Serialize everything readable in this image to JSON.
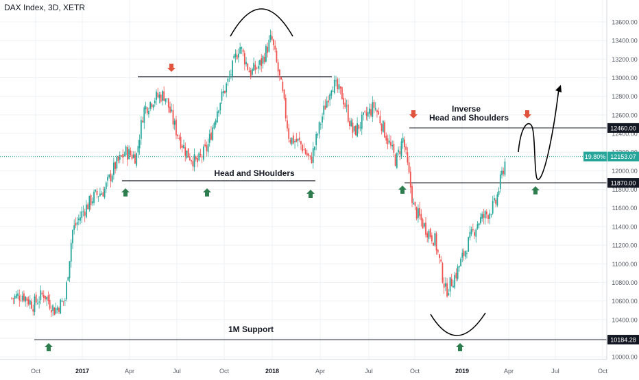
{
  "header": {
    "title": "DAX Index, 3D, XETR"
  },
  "colors": {
    "up": "#26a69a",
    "down": "#ef5350",
    "grid": "#eef0f3",
    "axis": "#d1d4dc",
    "axis_text": "#555a66",
    "line": "#131722",
    "arrow_up": "#2e7d4f",
    "arrow_down": "#e0533d",
    "current": "#26a69a"
  },
  "chart_data": {
    "type": "candlestick",
    "x_ticks": [
      "Oct",
      "2017",
      "Apr",
      "Jul",
      "Oct",
      "2018",
      "Apr",
      "Jul",
      "Oct",
      "2019",
      "Apr",
      "Jul",
      "Oct"
    ],
    "x_ticks_bold": [
      "2017",
      "2018",
      "2019"
    ],
    "y_ticks": [
      "10000.00",
      "10200.00",
      "10400.00",
      "10600.00",
      "10800.00",
      "11000.00",
      "11200.00",
      "11400.00",
      "11600.00",
      "11800.00",
      "12000.00",
      "12200.00",
      "12400.00",
      "12600.00",
      "12800.00",
      "13000.00",
      "13200.00",
      "13400.00",
      "13600.00"
    ],
    "ylim": [
      9900,
      13800
    ],
    "levels": [
      {
        "label": "12460.00",
        "value": 12460
      },
      {
        "label": "11870.00",
        "value": 11870
      },
      {
        "label": "10184.28",
        "value": 10184.28
      }
    ],
    "current": {
      "value": 12153.07,
      "label": "12153.07",
      "percent": "19.80%"
    },
    "annotations": [
      {
        "id": "hs",
        "text": "Head and SHoulders"
      },
      {
        "id": "inverse",
        "lines": [
          "Inverse",
          "Head and Shoulders"
        ]
      },
      {
        "id": "support",
        "text": "1M Support"
      }
    ],
    "series": [
      {
        "x": "2016-08-15",
        "close": 10630
      },
      {
        "x": "2016-09-05",
        "close": 10670
      },
      {
        "x": "2016-09-26",
        "close": 10560
      },
      {
        "x": "2016-10-17",
        "close": 10680
      },
      {
        "x": "2016-11-07",
        "close": 10500
      },
      {
        "x": "2016-11-28",
        "close": 10620
      },
      {
        "x": "2016-12-12",
        "close": 11350
      },
      {
        "x": "2017-01-02",
        "close": 11560
      },
      {
        "x": "2017-01-23",
        "close": 11720
      },
      {
        "x": "2017-02-13",
        "close": 11790
      },
      {
        "x": "2017-03-06",
        "close": 12050
      },
      {
        "x": "2017-03-27",
        "close": 12200
      },
      {
        "x": "2017-04-17",
        "close": 12150
      },
      {
        "x": "2017-05-01",
        "close": 12650
      },
      {
        "x": "2017-05-22",
        "close": 12780
      },
      {
        "x": "2017-06-12",
        "close": 12820
      },
      {
        "x": "2017-07-03",
        "close": 12450
      },
      {
        "x": "2017-07-24",
        "close": 12200
      },
      {
        "x": "2017-08-14",
        "close": 12080
      },
      {
        "x": "2017-09-04",
        "close": 12250
      },
      {
        "x": "2017-09-25",
        "close": 12700
      },
      {
        "x": "2017-10-16",
        "close": 12980
      },
      {
        "x": "2017-11-06",
        "close": 13350
      },
      {
        "x": "2017-11-27",
        "close": 13050
      },
      {
        "x": "2017-12-18",
        "close": 13150
      },
      {
        "x": "2018-01-08",
        "close": 13430
      },
      {
        "x": "2018-01-29",
        "close": 12850
      },
      {
        "x": "2018-02-12",
        "close": 12350
      },
      {
        "x": "2018-03-05",
        "close": 12300
      },
      {
        "x": "2018-03-26",
        "close": 12100
      },
      {
        "x": "2018-04-16",
        "close": 12550
      },
      {
        "x": "2018-05-07",
        "close": 12950
      },
      {
        "x": "2018-05-28",
        "close": 12800
      },
      {
        "x": "2018-06-18",
        "close": 12400
      },
      {
        "x": "2018-07-09",
        "close": 12560
      },
      {
        "x": "2018-07-30",
        "close": 12700
      },
      {
        "x": "2018-08-20",
        "close": 12400
      },
      {
        "x": "2018-09-10",
        "close": 12100
      },
      {
        "x": "2018-09-24",
        "close": 12350
      },
      {
        "x": "2018-10-15",
        "close": 11600
      },
      {
        "x": "2018-11-05",
        "close": 11400
      },
      {
        "x": "2018-11-26",
        "close": 11250
      },
      {
        "x": "2018-12-17",
        "close": 10700
      },
      {
        "x": "2019-01-07",
        "close": 10900
      },
      {
        "x": "2019-01-28",
        "close": 11200
      },
      {
        "x": "2019-02-18",
        "close": 11450
      },
      {
        "x": "2019-03-11",
        "close": 11550
      },
      {
        "x": "2019-03-25",
        "close": 11650
      },
      {
        "x": "2019-04-08",
        "close": 12000
      },
      {
        "x": "2019-04-15",
        "close": 12153
      }
    ]
  }
}
